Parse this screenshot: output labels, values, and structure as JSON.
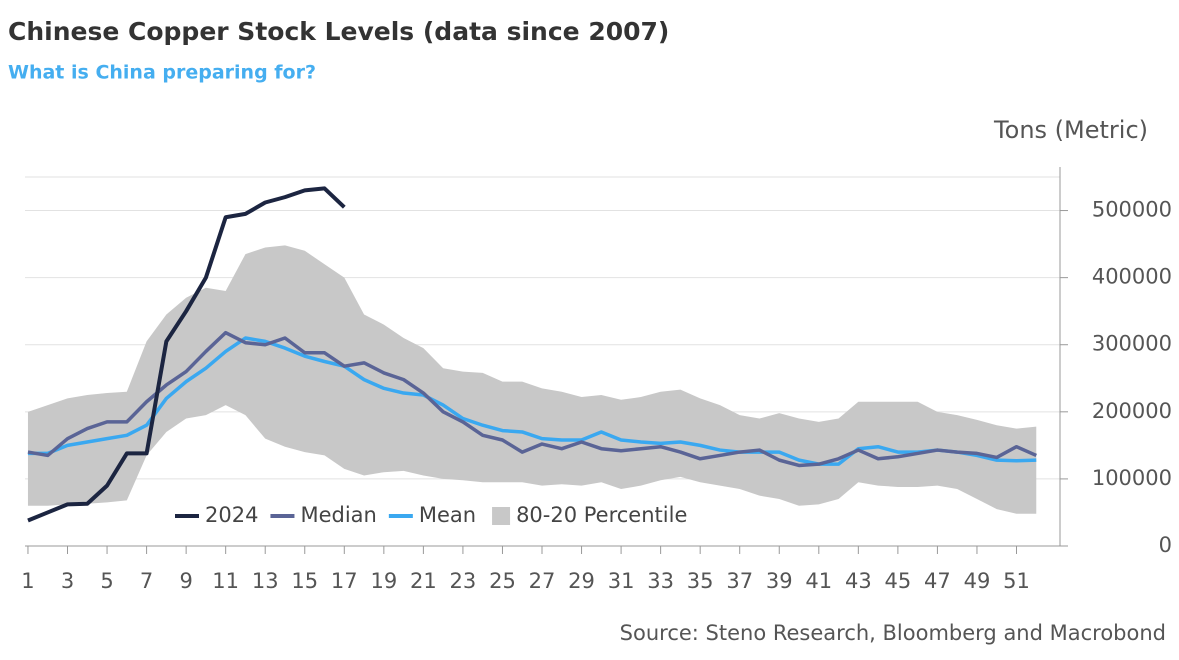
{
  "chart_data": {
    "type": "line",
    "title": "Chinese Copper Stock Levels (data since 2007)",
    "subtitle": "What is China preparing for?",
    "y_axis_label": "Tons (Metric)",
    "source": "Source: Steno Research, Bloomberg and Macrobond",
    "x": [
      1,
      2,
      3,
      4,
      5,
      6,
      7,
      8,
      9,
      10,
      11,
      12,
      13,
      14,
      15,
      16,
      17,
      18,
      19,
      20,
      21,
      22,
      23,
      24,
      25,
      26,
      27,
      28,
      29,
      30,
      31,
      32,
      33,
      34,
      35,
      36,
      37,
      38,
      39,
      40,
      41,
      42,
      43,
      44,
      45,
      46,
      47,
      48,
      49,
      50,
      51,
      52
    ],
    "xlim": [
      0.85,
      53.2
    ],
    "xticks": [
      1,
      3,
      5,
      7,
      9,
      11,
      13,
      15,
      17,
      19,
      21,
      23,
      25,
      27,
      29,
      31,
      33,
      35,
      37,
      39,
      41,
      43,
      45,
      47,
      49,
      51
    ],
    "ylim": [
      0,
      550000
    ],
    "yticks": [
      0,
      100000,
      200000,
      300000,
      400000,
      500000
    ],
    "y_axis_side": "right",
    "grid": true,
    "band": {
      "name": "80-20 Percentile",
      "color": "#c8c8c8",
      "upper": [
        200000,
        210000,
        220000,
        225000,
        228000,
        230000,
        305000,
        345000,
        370000,
        385000,
        380000,
        435000,
        445000,
        448000,
        440000,
        420000,
        400000,
        345000,
        330000,
        310000,
        295000,
        265000,
        260000,
        258000,
        245000,
        245000,
        235000,
        230000,
        222000,
        225000,
        218000,
        222000,
        230000,
        233000,
        220000,
        210000,
        195000,
        190000,
        198000,
        190000,
        185000,
        190000,
        215000,
        215000,
        215000,
        215000,
        200000,
        195000,
        188000,
        180000,
        175000,
        178000
      ],
      "lower": [
        60000,
        60000,
        62000,
        63000,
        65000,
        68000,
        135000,
        170000,
        190000,
        195000,
        210000,
        195000,
        160000,
        148000,
        140000,
        135000,
        115000,
        105000,
        110000,
        112000,
        105000,
        100000,
        98000,
        95000,
        95000,
        95000,
        90000,
        92000,
        90000,
        95000,
        85000,
        90000,
        98000,
        103000,
        95000,
        90000,
        85000,
        75000,
        70000,
        60000,
        62000,
        70000,
        95000,
        90000,
        88000,
        88000,
        90000,
        85000,
        70000,
        55000,
        48000,
        48000
      ]
    },
    "series": [
      {
        "name": "2024",
        "color": "#1c2541",
        "values": [
          38000,
          50000,
          62000,
          63000,
          90000,
          138000,
          138000,
          305000,
          350000,
          400000,
          490000,
          495000,
          512000,
          520000,
          530000,
          533000,
          505000,
          null,
          null,
          null,
          null,
          null,
          null,
          null,
          null,
          null,
          null,
          null,
          null,
          null,
          null,
          null,
          null,
          null,
          null,
          null,
          null,
          null,
          null,
          null,
          null,
          null,
          null,
          null,
          null,
          null,
          null,
          null,
          null,
          null,
          null,
          null
        ]
      },
      {
        "name": "Median",
        "color": "#5a6496",
        "values": [
          140000,
          135000,
          160000,
          175000,
          185000,
          185000,
          215000,
          240000,
          260000,
          290000,
          318000,
          303000,
          300000,
          310000,
          288000,
          288000,
          268000,
          273000,
          258000,
          248000,
          228000,
          200000,
          185000,
          165000,
          158000,
          140000,
          152000,
          145000,
          155000,
          145000,
          142000,
          145000,
          148000,
          140000,
          130000,
          135000,
          140000,
          143000,
          128000,
          120000,
          122000,
          130000,
          143000,
          130000,
          133000,
          138000,
          143000,
          140000,
          138000,
          132000,
          148000,
          135000
        ]
      },
      {
        "name": "Mean",
        "color": "#3aa8f0",
        "values": [
          138000,
          138000,
          150000,
          155000,
          160000,
          165000,
          180000,
          220000,
          245000,
          265000,
          290000,
          310000,
          305000,
          295000,
          283000,
          275000,
          268000,
          248000,
          235000,
          228000,
          225000,
          210000,
          190000,
          180000,
          172000,
          170000,
          160000,
          158000,
          158000,
          170000,
          158000,
          155000,
          153000,
          155000,
          150000,
          143000,
          140000,
          140000,
          140000,
          128000,
          122000,
          122000,
          145000,
          148000,
          140000,
          140000,
          143000,
          140000,
          135000,
          128000,
          127000,
          128000
        ]
      }
    ]
  }
}
